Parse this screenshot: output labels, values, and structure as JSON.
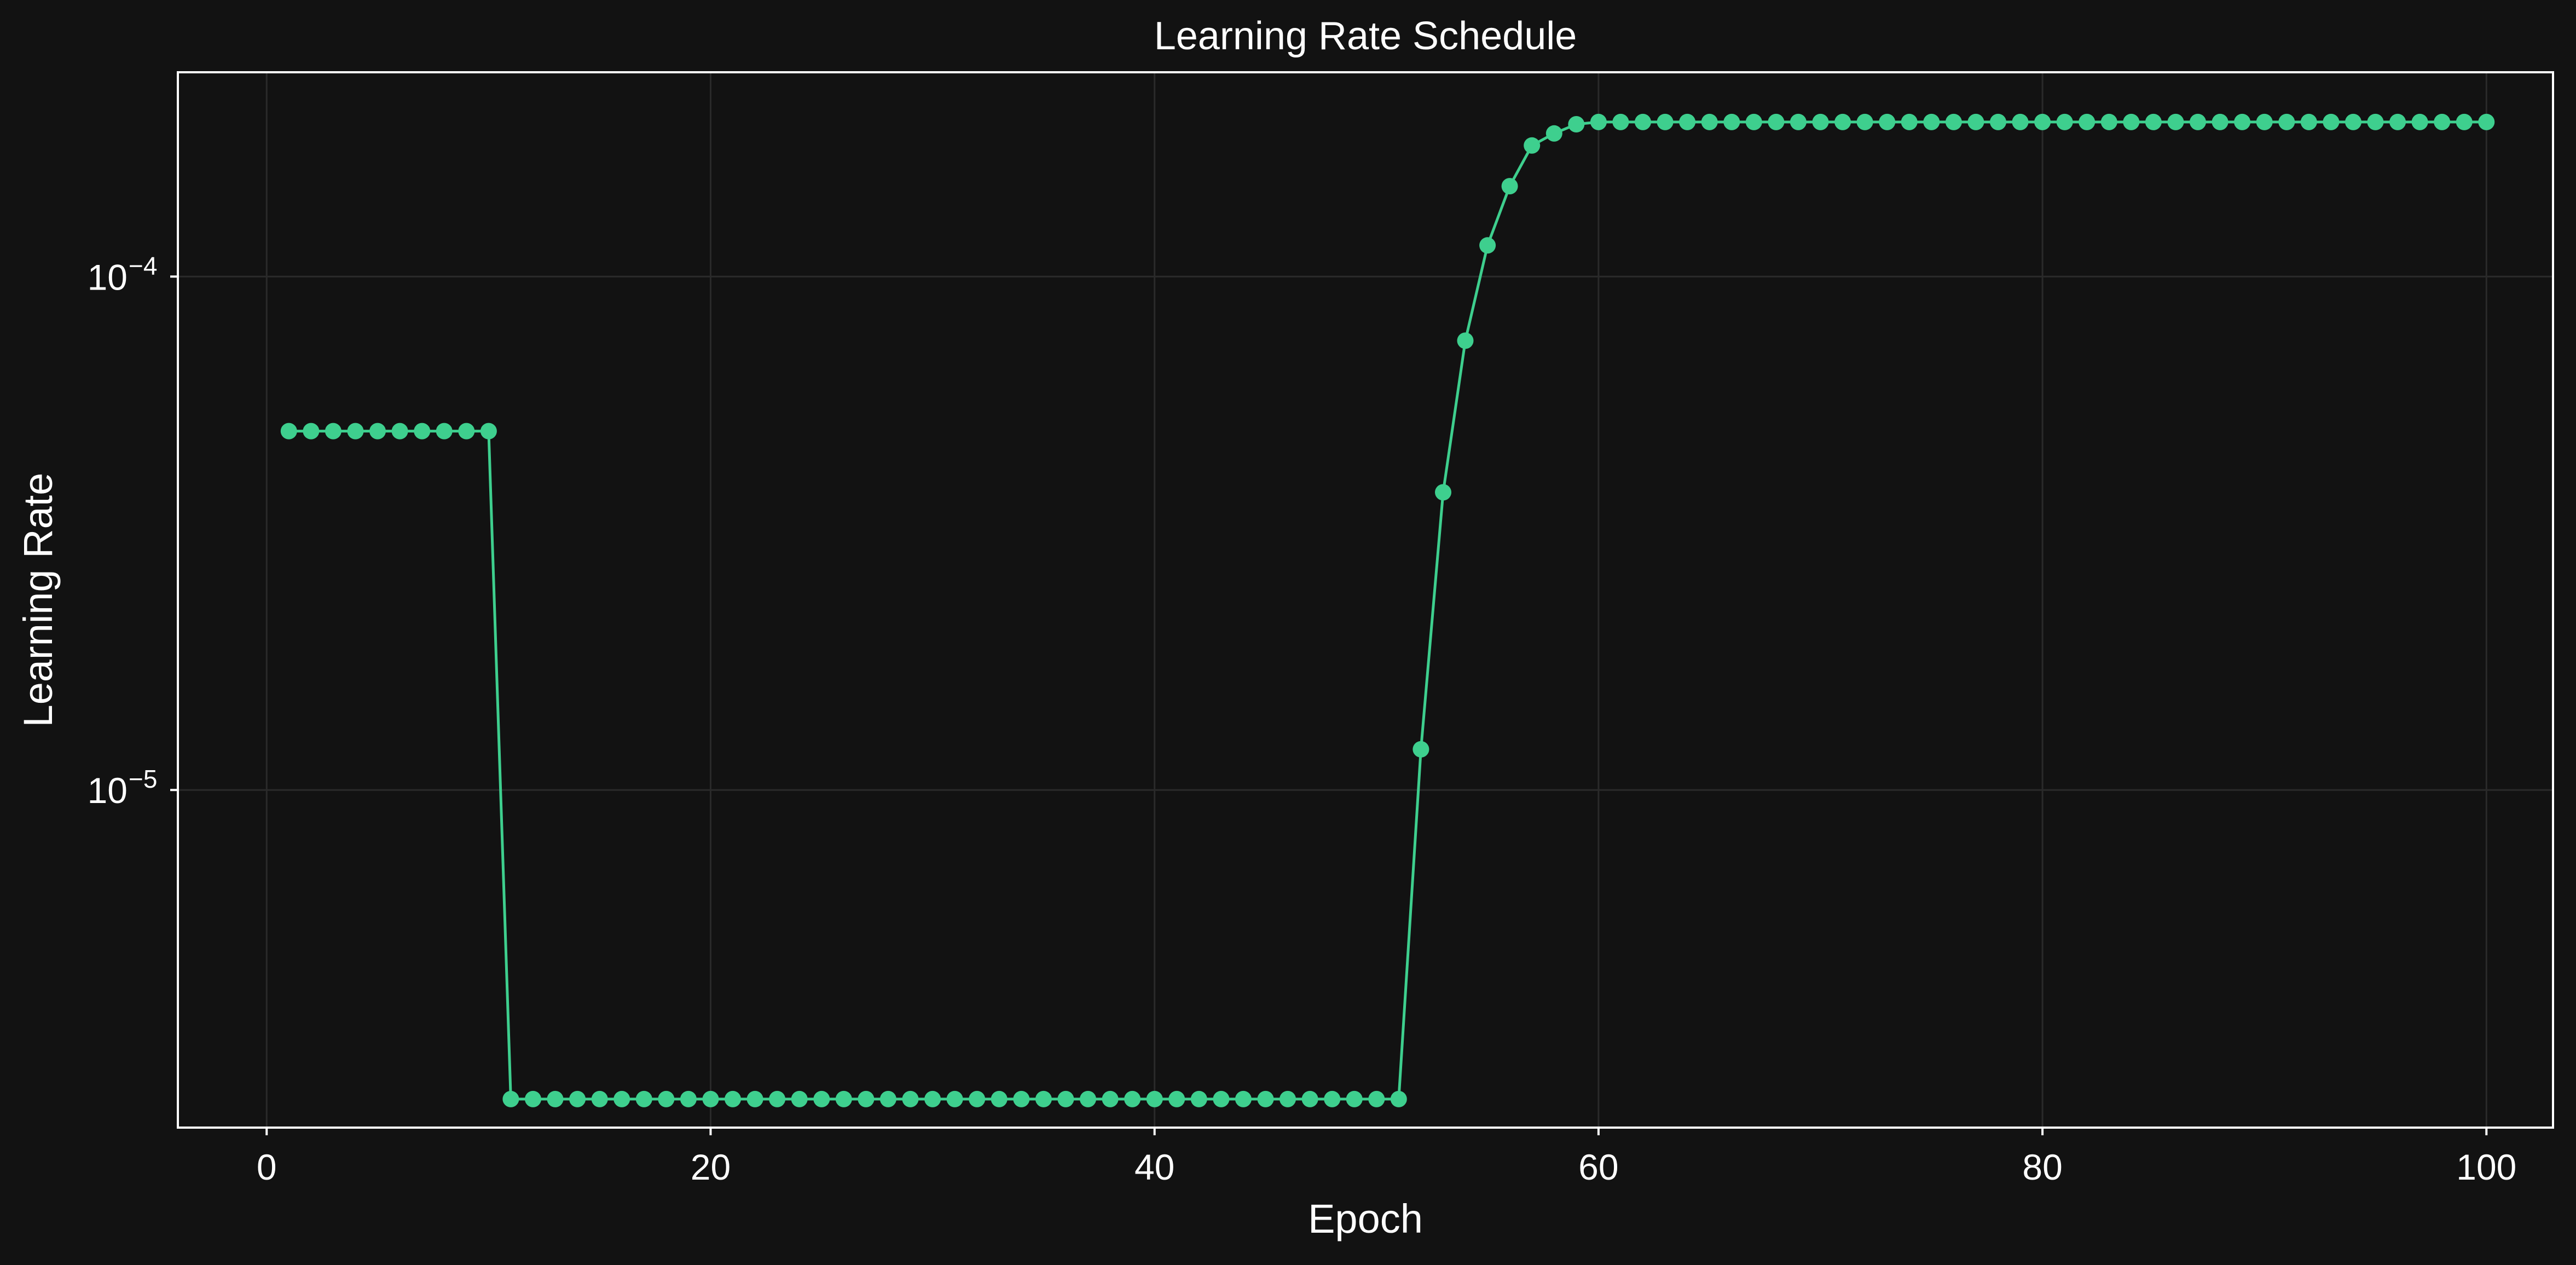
{
  "chart_data": {
    "type": "line",
    "title": "Learning Rate Schedule",
    "xlabel": "Epoch",
    "ylabel": "Learning Rate",
    "yscale": "log",
    "xlim": [
      -4,
      103
    ],
    "ylim": [
      2.2e-06,
      0.00025
    ],
    "xticks": [
      0,
      20,
      40,
      60,
      80,
      100
    ],
    "yticks": [
      {
        "value": 1e-05,
        "base": "10",
        "exponent": "−5"
      },
      {
        "value": 0.0001,
        "base": "10",
        "exponent": "−4"
      }
    ],
    "grid": true,
    "color": "#3ecf8e",
    "marker": "circle",
    "series": [
      {
        "x": [
          1,
          2,
          3,
          4,
          5,
          6,
          7,
          8,
          9,
          10,
          11,
          12,
          13,
          14,
          15,
          16,
          17,
          18,
          19,
          20,
          21,
          22,
          23,
          24,
          25,
          26,
          27,
          28,
          29,
          30,
          31,
          32,
          33,
          34,
          35,
          36,
          37,
          38,
          39,
          40,
          41,
          42,
          43,
          44,
          45,
          46,
          47,
          48,
          49,
          50,
          51,
          52,
          53,
          54,
          55,
          56,
          57,
          58,
          59,
          60,
          61,
          62,
          63,
          64,
          65,
          66,
          67,
          68,
          69,
          70,
          71,
          72,
          73,
          74,
          75,
          76,
          77,
          78,
          79,
          80,
          81,
          82,
          83,
          84,
          85,
          86,
          87,
          88,
          89,
          90,
          91,
          92,
          93,
          94,
          95,
          96,
          97,
          98,
          99,
          100
        ],
        "y": [
          5e-05,
          5e-05,
          5e-05,
          5e-05,
          5e-05,
          5e-05,
          5e-05,
          5e-05,
          5e-05,
          5e-05,
          2.5e-06,
          2.5e-06,
          2.5e-06,
          2.5e-06,
          2.5e-06,
          2.5e-06,
          2.5e-06,
          2.5e-06,
          2.5e-06,
          2.5e-06,
          2.5e-06,
          2.5e-06,
          2.5e-06,
          2.5e-06,
          2.5e-06,
          2.5e-06,
          2.5e-06,
          2.5e-06,
          2.5e-06,
          2.5e-06,
          2.5e-06,
          2.5e-06,
          2.5e-06,
          2.5e-06,
          2.5e-06,
          2.5e-06,
          2.5e-06,
          2.5e-06,
          2.5e-06,
          2.5e-06,
          2.5e-06,
          2.5e-06,
          2.5e-06,
          2.5e-06,
          2.5e-06,
          2.5e-06,
          2.5e-06,
          2.5e-06,
          2.5e-06,
          2.5e-06,
          2.5e-06,
          1.2e-05,
          3.8e-05,
          7.5e-05,
          0.000115,
          0.00015,
          0.00018,
          0.00019,
          0.000198,
          0.0002,
          0.0002,
          0.0002,
          0.0002,
          0.0002,
          0.0002,
          0.0002,
          0.0002,
          0.0002,
          0.0002,
          0.0002,
          0.0002,
          0.0002,
          0.0002,
          0.0002,
          0.0002,
          0.0002,
          0.0002,
          0.0002,
          0.0002,
          0.0002,
          0.0002,
          0.0002,
          0.0002,
          0.0002,
          0.0002,
          0.0002,
          0.0002,
          0.0002,
          0.0002,
          0.0002,
          0.0002,
          0.0002,
          0.0002,
          0.0002,
          0.0002,
          0.0002,
          0.0002,
          0.0002,
          0.0002,
          0.0002
        ]
      }
    ]
  }
}
